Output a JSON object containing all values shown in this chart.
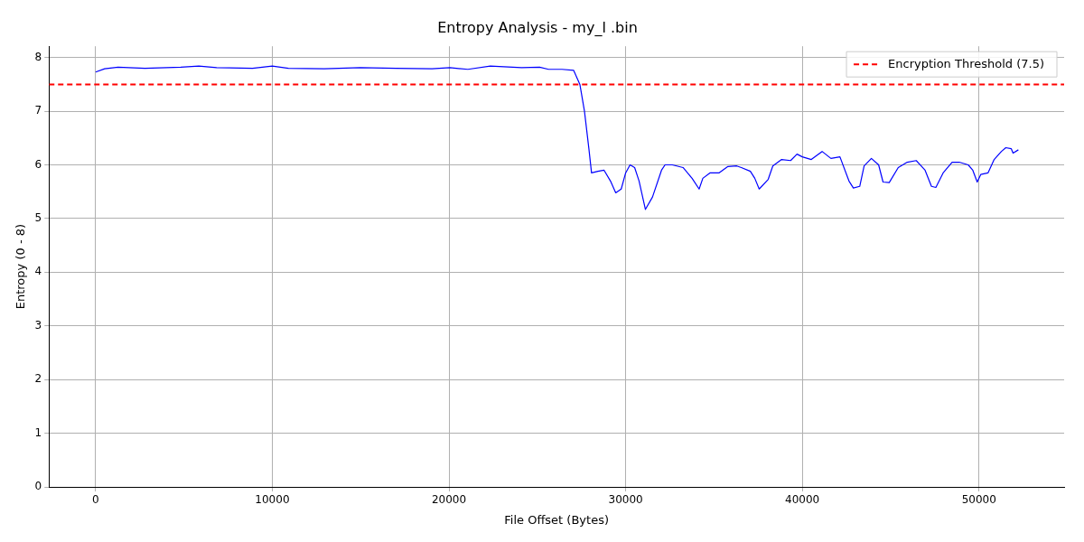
{
  "chart_data": {
    "type": "line",
    "title": "Entropy Analysis - my_l .bin",
    "xlabel": "File Offset (Bytes)",
    "ylabel": "Entropy (0 - 8)",
    "xlim": [
      -2640,
      54820
    ],
    "ylim": [
      0,
      8.21
    ],
    "xticks": [
      0,
      10000,
      20000,
      30000,
      40000,
      50000
    ],
    "yticks": [
      0,
      1,
      2,
      3,
      4,
      5,
      6,
      7,
      8
    ],
    "grid": true,
    "legend": "top right",
    "marker": "none",
    "line_style": "solid",
    "series": [
      {
        "color": "#0000ff",
        "x": [
          0,
          510,
          1270,
          2790,
          4820,
          5840,
          6850,
          8880,
          10000,
          10910,
          12940,
          14980,
          17000,
          19040,
          20050,
          21070,
          22340,
          24110,
          25130,
          25640,
          26400,
          27060,
          27410,
          27670,
          27920,
          28070,
          28430,
          28780,
          29140,
          29440,
          29750,
          30000,
          30250,
          30510,
          30760,
          31120,
          31520,
          32030,
          32230,
          32640,
          33250,
          33760,
          34160,
          34370,
          34770,
          35280,
          35790,
          36290,
          36550,
          37060,
          37310,
          37560,
          38070,
          38330,
          38830,
          39340,
          39700,
          40000,
          40510,
          41120,
          41620,
          42130,
          42640,
          42890,
          43250,
          43500,
          43910,
          44320,
          44570,
          44920,
          45430,
          45940,
          46450,
          46950,
          47310,
          47560,
          47970,
          48480,
          48880,
          49390,
          49650,
          49900,
          50100,
          50510,
          50860,
          51270,
          51520,
          51830,
          51930,
          52230
        ],
        "values": [
          7.73,
          7.79,
          7.82,
          7.8,
          7.82,
          7.84,
          7.81,
          7.8,
          7.84,
          7.8,
          7.79,
          7.81,
          7.8,
          7.79,
          7.81,
          7.78,
          7.84,
          7.81,
          7.82,
          7.78,
          7.78,
          7.76,
          7.5,
          7.0,
          6.3,
          5.85,
          5.88,
          5.9,
          5.7,
          5.48,
          5.55,
          5.85,
          6.0,
          5.95,
          5.7,
          5.17,
          5.4,
          5.9,
          6.0,
          6.0,
          5.95,
          5.75,
          5.55,
          5.75,
          5.85,
          5.85,
          5.97,
          5.98,
          5.95,
          5.88,
          5.75,
          5.55,
          5.73,
          5.98,
          6.1,
          6.08,
          6.2,
          6.15,
          6.1,
          6.25,
          6.12,
          6.15,
          5.7,
          5.57,
          5.6,
          5.98,
          6.12,
          6.0,
          5.68,
          5.67,
          5.95,
          6.05,
          6.08,
          5.9,
          5.6,
          5.58,
          5.85,
          6.05,
          6.05,
          6.0,
          5.9,
          5.68,
          5.82,
          5.85,
          6.1,
          6.25,
          6.32,
          6.3,
          6.22,
          6.28
        ]
      }
    ],
    "ref_lines": [
      {
        "axis": "y",
        "value": 7.5,
        "label": "Encryption Threshold (7.5)",
        "color": "#ff0000",
        "line_style": "dashed"
      }
    ]
  }
}
